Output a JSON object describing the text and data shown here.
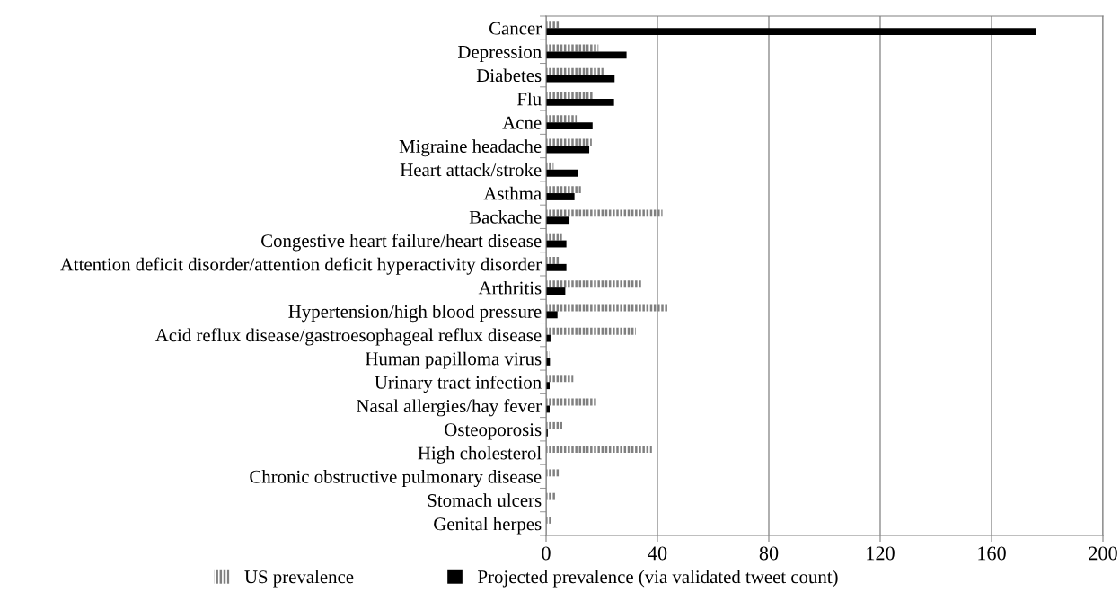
{
  "chart_data": {
    "type": "bar",
    "orientation": "horizontal",
    "categories": [
      "Cancer",
      "Depression",
      "Diabetes",
      "Flu",
      "Acne",
      "Migraine headache",
      "Heart attack/stroke",
      "Asthma",
      "Backache",
      "Congestive heart failure/heart disease",
      "Attention deficit disorder/attention deficit hyperactivity disorder",
      "Arthritis",
      "Hypertension/high blood pressure",
      "Acid reflux disease/gastroesophageal reflux disease",
      "Human papilloma virus",
      "Urinary tract infection",
      "Nasal allergies/hay fever",
      "Osteoporosis",
      "High cholesterol",
      "Chronic obstructive pulmonary disease",
      "Stomach ulcers",
      "Genital herpes"
    ],
    "series": [
      {
        "name": "US prevalence",
        "color": "#808080",
        "values": [
          4.8,
          18.8,
          20.6,
          17.1,
          11.0,
          16.4,
          2.7,
          12.5,
          41.8,
          5.7,
          4.8,
          34.3,
          43.6,
          32.2,
          1.1,
          9.8,
          18.0,
          5.8,
          38.0,
          5.1,
          3.3,
          1.8
        ]
      },
      {
        "name": "Projected prevalence (via validated tweet count)",
        "color": "#000000",
        "values": [
          176,
          28.9,
          24.6,
          24.4,
          16.7,
          15.5,
          11.6,
          10.2,
          8.4,
          7.3,
          7.3,
          6.9,
          4.1,
          1.6,
          1.4,
          1.3,
          1.3,
          0.6,
          null,
          null,
          null,
          null
        ]
      }
    ],
    "xlim": [
      0,
      200
    ],
    "xticks": [
      0,
      40,
      80,
      120,
      160,
      200
    ],
    "grid": "x",
    "legend": "bottom"
  }
}
